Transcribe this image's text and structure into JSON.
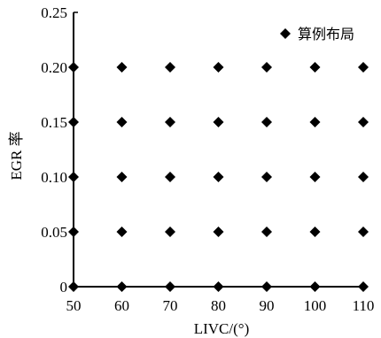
{
  "chart_data": {
    "type": "scatter",
    "xlabel": "LIVC/(°)",
    "ylabel": "EGR 率",
    "xlim": [
      50,
      110
    ],
    "ylim": [
      0,
      0.25
    ],
    "x_ticks": [
      "50",
      "60",
      "70",
      "80",
      "90",
      "100",
      "110"
    ],
    "y_ticks": [
      "0",
      "0.05",
      "0.10",
      "0.15",
      "0.20",
      "0.25"
    ],
    "legend_position": "top-right",
    "grid": false,
    "marker": "diamond",
    "series": [
      {
        "name": "算例布局",
        "points": [
          [
            50,
            0
          ],
          [
            60,
            0
          ],
          [
            70,
            0
          ],
          [
            80,
            0
          ],
          [
            90,
            0
          ],
          [
            100,
            0
          ],
          [
            110,
            0
          ],
          [
            50,
            0.05
          ],
          [
            60,
            0.05
          ],
          [
            70,
            0.05
          ],
          [
            80,
            0.05
          ],
          [
            90,
            0.05
          ],
          [
            100,
            0.05
          ],
          [
            110,
            0.05
          ],
          [
            50,
            0.1
          ],
          [
            60,
            0.1
          ],
          [
            70,
            0.1
          ],
          [
            80,
            0.1
          ],
          [
            90,
            0.1
          ],
          [
            100,
            0.1
          ],
          [
            110,
            0.1
          ],
          [
            50,
            0.15
          ],
          [
            60,
            0.15
          ],
          [
            70,
            0.15
          ],
          [
            80,
            0.15
          ],
          [
            90,
            0.15
          ],
          [
            100,
            0.15
          ],
          [
            110,
            0.15
          ],
          [
            50,
            0.2
          ],
          [
            60,
            0.2
          ],
          [
            70,
            0.2
          ],
          [
            80,
            0.2
          ],
          [
            90,
            0.2
          ],
          [
            100,
            0.2
          ],
          [
            110,
            0.2
          ]
        ]
      }
    ]
  }
}
